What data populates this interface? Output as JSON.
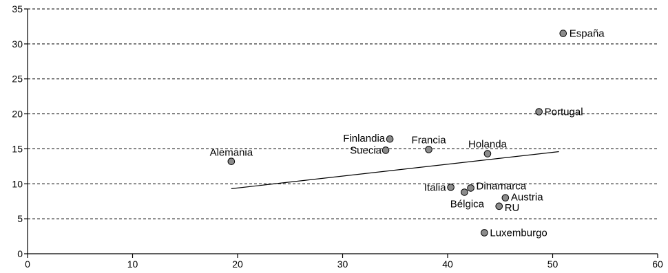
{
  "chart_data": {
    "type": "scatter",
    "title": "",
    "xlabel": "",
    "ylabel": "",
    "xlim": [
      0,
      60
    ],
    "ylim": [
      0,
      35
    ],
    "x_ticks": [
      0,
      10,
      20,
      30,
      40,
      50,
      60
    ],
    "y_ticks": [
      0,
      5,
      10,
      15,
      20,
      25,
      30,
      35
    ],
    "grid": "horizontal dashed",
    "marker_color": "#8c8c8c",
    "points": [
      {
        "label": "España",
        "x": 51.0,
        "y": 31.5
      },
      {
        "label": "Portugal",
        "x": 48.7,
        "y": 20.3
      },
      {
        "label": "Finlandia",
        "x": 34.5,
        "y": 16.4
      },
      {
        "label": "Suecia",
        "x": 34.1,
        "y": 14.8
      },
      {
        "label": "Francia",
        "x": 38.2,
        "y": 14.9
      },
      {
        "label": "Holanda",
        "x": 43.8,
        "y": 14.3
      },
      {
        "label": "Alemania",
        "x": 19.4,
        "y": 13.2
      },
      {
        "label": "Italia",
        "x": 40.3,
        "y": 9.5
      },
      {
        "label": "Dinamarca",
        "x": 42.2,
        "y": 9.4
      },
      {
        "label": "Bélgica",
        "x": 41.6,
        "y": 8.8
      },
      {
        "label": "Austria",
        "x": 45.5,
        "y": 8.0
      },
      {
        "label": "RU",
        "x": 44.9,
        "y": 6.8
      },
      {
        "label": "Luxemburgo",
        "x": 43.5,
        "y": 3.0
      }
    ],
    "trendline": {
      "x": [
        19.4,
        50.6
      ],
      "y": [
        9.3,
        14.6
      ]
    }
  }
}
